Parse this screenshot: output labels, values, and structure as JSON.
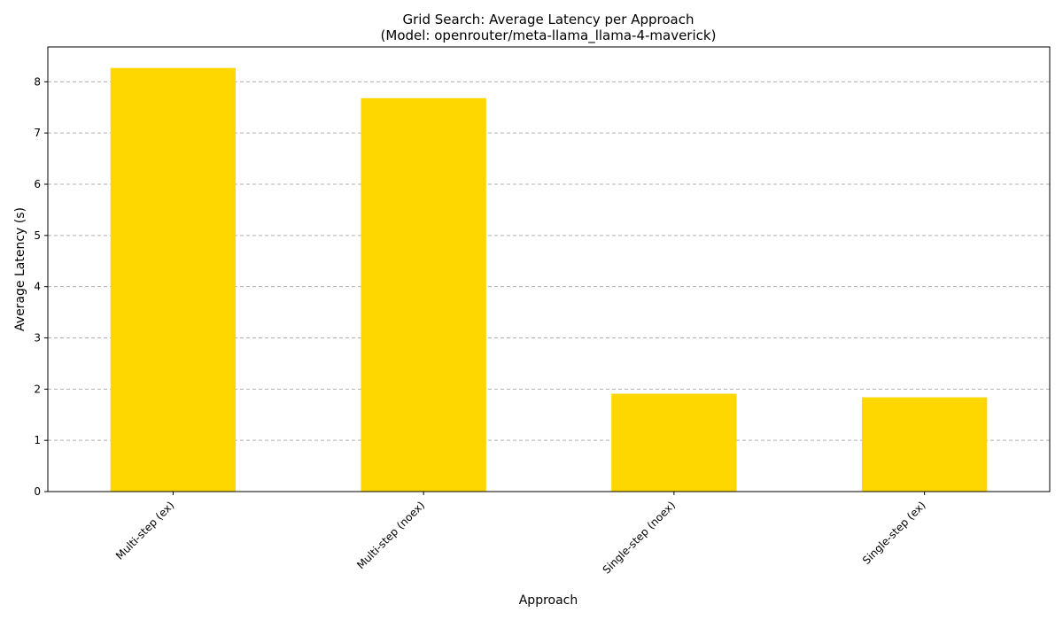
{
  "chart_data": {
    "type": "bar",
    "title": "Grid Search: Average Latency per Approach",
    "subtitle": "(Model: openrouter/meta-llama_llama-4-maverick)",
    "xlabel": "Approach",
    "ylabel": "Average Latency (s)",
    "categories": [
      "Multi-step (ex)",
      "Multi-step (noex)",
      "Single-step (noex)",
      "Single-step (ex)"
    ],
    "values": [
      8.27,
      7.68,
      1.91,
      1.84
    ],
    "ylim": [
      0,
      8.68
    ],
    "yticks": [
      0,
      1,
      2,
      3,
      4,
      5,
      6,
      7,
      8
    ],
    "grid": true,
    "bar_color": "#FFD700"
  }
}
